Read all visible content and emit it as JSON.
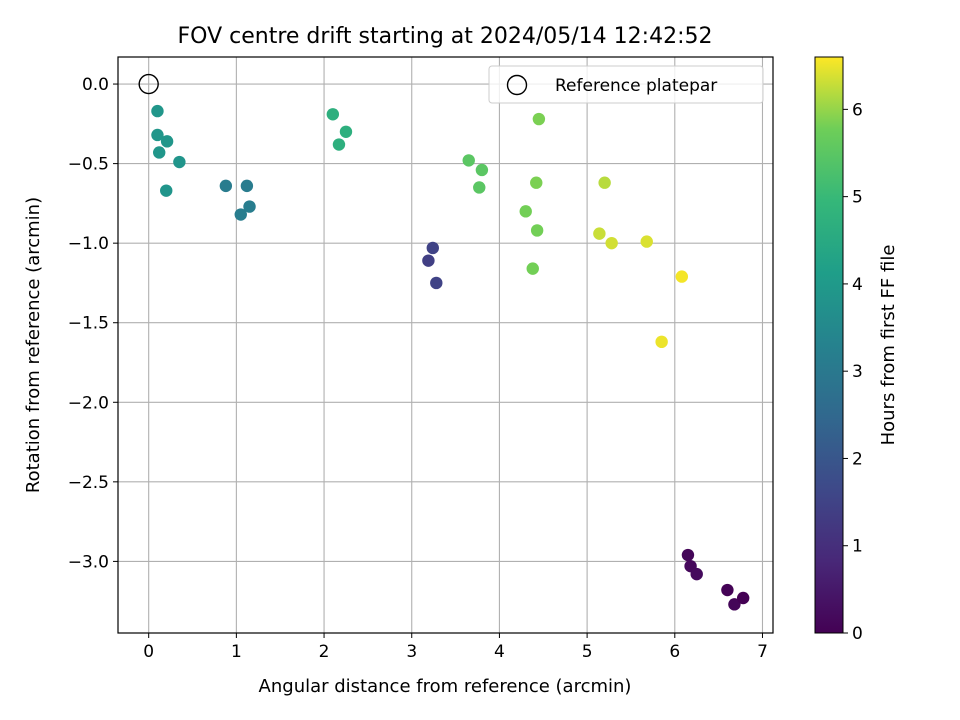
{
  "chart_data": {
    "type": "scatter",
    "title": "FOV centre drift starting at 2024/05/14 12:42:52",
    "xlabel": "Angular distance from reference (arcmin)",
    "ylabel": "Rotation from reference (arcmin)",
    "xlim": [
      -0.35,
      7.12
    ],
    "ylim": [
      -3.45,
      0.17
    ],
    "xticks": [
      0,
      1,
      2,
      3,
      4,
      5,
      6,
      7
    ],
    "xtick_labels": [
      "0",
      "1",
      "2",
      "3",
      "4",
      "5",
      "6",
      "7"
    ],
    "yticks": [
      0.0,
      -0.5,
      -1.0,
      -1.5,
      -2.0,
      -2.5,
      -3.0
    ],
    "ytick_labels": [
      "0.0",
      "−0.5",
      "−1.0",
      "−1.5",
      "−2.0",
      "−2.5",
      "−3.0"
    ],
    "grid": true,
    "legend": {
      "position": "upper right",
      "entries": [
        "Reference platepar"
      ]
    },
    "reference_point": {
      "x": 0,
      "y": 0,
      "label": "Reference platepar"
    },
    "colorbar": {
      "label": "Hours from first FF file",
      "colormap": "viridis",
      "range": [
        0,
        6.6
      ],
      "ticks": [
        0,
        1,
        2,
        3,
        4,
        5,
        6
      ],
      "tick_labels": [
        "0",
        "1",
        "2",
        "3",
        "4",
        "5",
        "6"
      ]
    },
    "points": [
      {
        "x": 6.15,
        "y": -2.96,
        "hours": 0.1
      },
      {
        "x": 6.18,
        "y": -3.03,
        "hours": 0.15
      },
      {
        "x": 6.25,
        "y": -3.08,
        "hours": 0.2
      },
      {
        "x": 6.6,
        "y": -3.18,
        "hours": 0.05
      },
      {
        "x": 6.68,
        "y": -3.27,
        "hours": 0.1
      },
      {
        "x": 6.78,
        "y": -3.23,
        "hours": 0.0
      },
      {
        "x": 3.19,
        "y": -1.11,
        "hours": 1.4
      },
      {
        "x": 3.24,
        "y": -1.03,
        "hours": 1.5
      },
      {
        "x": 3.28,
        "y": -1.25,
        "hours": 1.5
      },
      {
        "x": 0.88,
        "y": -0.64,
        "hours": 3.1
      },
      {
        "x": 1.12,
        "y": -0.64,
        "hours": 3.1
      },
      {
        "x": 1.05,
        "y": -0.82,
        "hours": 3.15
      },
      {
        "x": 1.15,
        "y": -0.77,
        "hours": 3.15
      },
      {
        "x": 0.1,
        "y": -0.17,
        "hours": 3.9
      },
      {
        "x": 0.1,
        "y": -0.32,
        "hours": 3.9
      },
      {
        "x": 0.12,
        "y": -0.43,
        "hours": 3.9
      },
      {
        "x": 0.21,
        "y": -0.36,
        "hours": 3.9
      },
      {
        "x": 0.35,
        "y": -0.49,
        "hours": 3.85
      },
      {
        "x": 0.2,
        "y": -0.67,
        "hours": 3.85
      },
      {
        "x": 2.1,
        "y": -0.19,
        "hours": 4.7
      },
      {
        "x": 2.25,
        "y": -0.3,
        "hours": 4.7
      },
      {
        "x": 2.17,
        "y": -0.38,
        "hours": 4.7
      },
      {
        "x": 3.65,
        "y": -0.48,
        "hours": 5.5
      },
      {
        "x": 3.8,
        "y": -0.54,
        "hours": 5.5
      },
      {
        "x": 3.77,
        "y": -0.65,
        "hours": 5.5
      },
      {
        "x": 4.45,
        "y": -0.22,
        "hours": 5.85
      },
      {
        "x": 4.42,
        "y": -0.62,
        "hours": 5.85
      },
      {
        "x": 4.3,
        "y": -0.8,
        "hours": 5.8
      },
      {
        "x": 4.43,
        "y": -0.92,
        "hours": 5.8
      },
      {
        "x": 4.38,
        "y": -1.16,
        "hours": 5.8
      },
      {
        "x": 5.2,
        "y": -0.62,
        "hours": 6.2
      },
      {
        "x": 5.14,
        "y": -0.94,
        "hours": 6.3
      },
      {
        "x": 5.28,
        "y": -1.0,
        "hours": 6.35
      },
      {
        "x": 5.68,
        "y": -0.99,
        "hours": 6.4
      },
      {
        "x": 6.08,
        "y": -1.21,
        "hours": 6.55
      },
      {
        "x": 5.85,
        "y": -1.62,
        "hours": 6.5
      }
    ]
  }
}
